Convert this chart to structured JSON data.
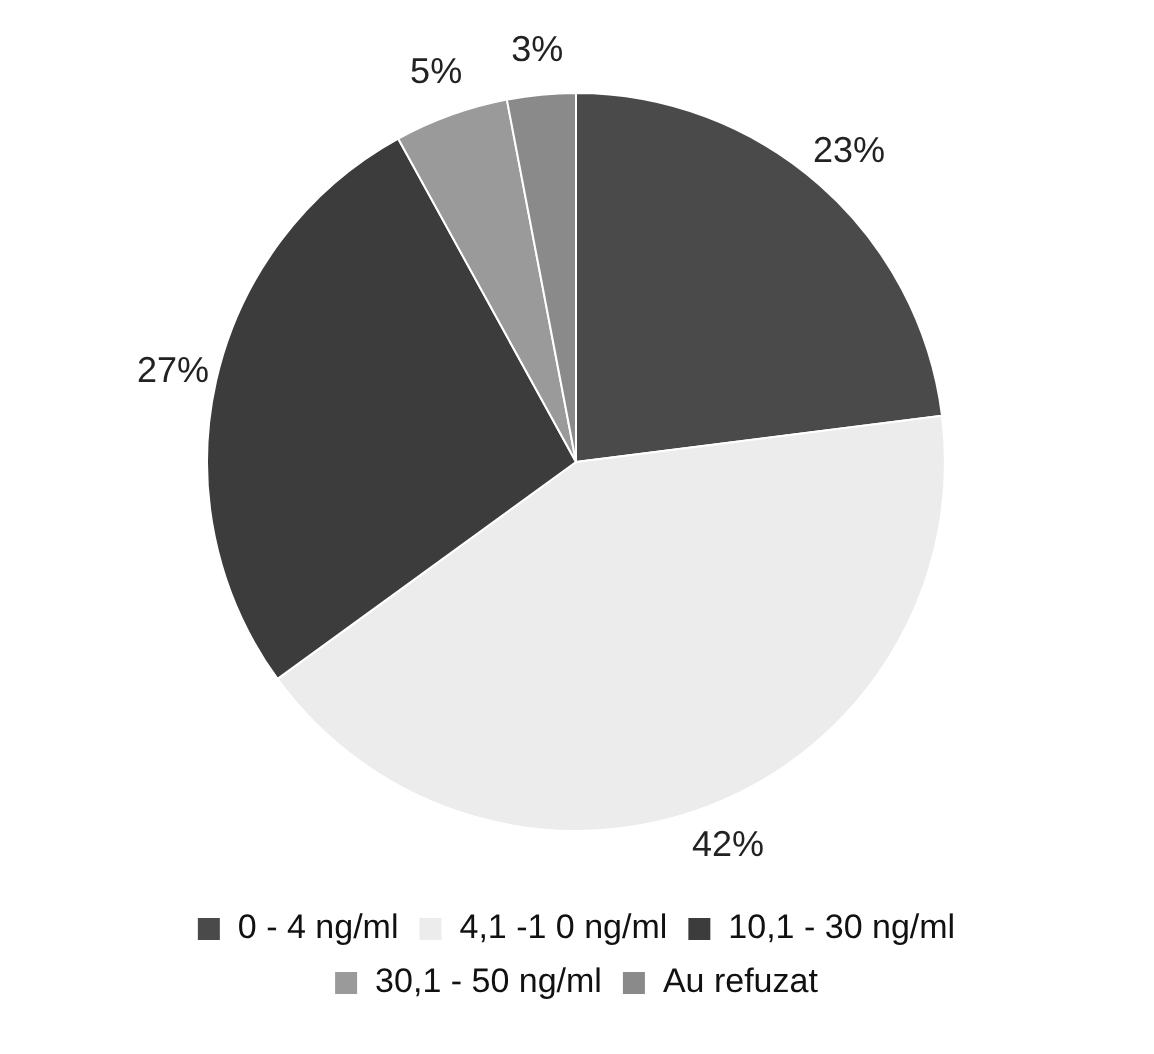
{
  "chart_data": {
    "type": "pie",
    "categories": [
      "0 - 4 ng/ml",
      "4,1 -1 0 ng/ml",
      "10,1 - 30 ng/ml",
      "30,1 - 50 ng/ml",
      "Au refuzat"
    ],
    "values": [
      23,
      42,
      27,
      5,
      3
    ],
    "colors": [
      "#4a4a4a",
      "#ececec",
      "#3c3c3c",
      "#9a9a9a",
      "#8a8a8a"
    ],
    "value_labels": [
      "23%",
      "42%",
      "27%",
      "5%",
      "3%"
    ],
    "legend": "bottom"
  }
}
